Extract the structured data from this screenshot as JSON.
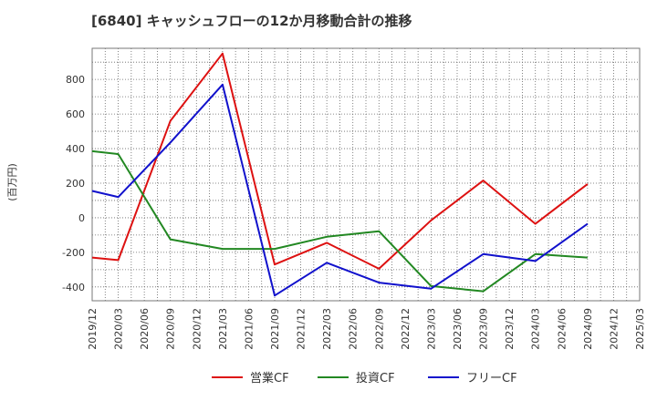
{
  "chart_data": {
    "type": "line",
    "title": "[6840]  キャッシュフローの12か月移動合計の推移",
    "ylabel": "(百万円)",
    "xlabel": "",
    "ylim": [
      -480,
      980
    ],
    "yticks": [
      -400,
      -200,
      0,
      200,
      400,
      600,
      800
    ],
    "grid": true,
    "legend_position": "bottom",
    "x_tick_labels": [
      "2019/12",
      "2020/03",
      "2020/06",
      "2020/09",
      "2020/12",
      "2021/03",
      "2021/06",
      "2021/09",
      "2021/12",
      "2022/03",
      "2022/06",
      "2022/09",
      "2022/12",
      "2023/03",
      "2023/06",
      "2023/09",
      "2023/12",
      "2024/03",
      "2024/06",
      "2024/09",
      "2024/12",
      "2025/03"
    ],
    "series": [
      {
        "name": "営業CF",
        "color": "#dd1111",
        "points": [
          {
            "x": "2019/12",
            "y": -230
          },
          {
            "x": "2020/03",
            "y": -245
          },
          {
            "x": "2020/09",
            "y": 560
          },
          {
            "x": "2021/03",
            "y": 950
          },
          {
            "x": "2021/09",
            "y": -270
          },
          {
            "x": "2022/03",
            "y": -145
          },
          {
            "x": "2022/09",
            "y": -295
          },
          {
            "x": "2023/03",
            "y": -15
          },
          {
            "x": "2023/09",
            "y": 215
          },
          {
            "x": "2024/03",
            "y": -35
          },
          {
            "x": "2024/09",
            "y": 195
          }
        ]
      },
      {
        "name": "投資CF",
        "color": "#228822",
        "points": [
          {
            "x": "2019/12",
            "y": 385
          },
          {
            "x": "2020/03",
            "y": 368
          },
          {
            "x": "2020/09",
            "y": -125
          },
          {
            "x": "2021/03",
            "y": -180
          },
          {
            "x": "2021/09",
            "y": -180
          },
          {
            "x": "2022/03",
            "y": -110
          },
          {
            "x": "2022/09",
            "y": -78
          },
          {
            "x": "2023/03",
            "y": -395
          },
          {
            "x": "2023/09",
            "y": -425
          },
          {
            "x": "2024/03",
            "y": -210
          },
          {
            "x": "2024/09",
            "y": -230
          }
        ]
      },
      {
        "name": "フリーCF",
        "color": "#1111cc",
        "points": [
          {
            "x": "2019/12",
            "y": 155
          },
          {
            "x": "2020/03",
            "y": 120
          },
          {
            "x": "2020/09",
            "y": 435
          },
          {
            "x": "2021/03",
            "y": 770
          },
          {
            "x": "2021/09",
            "y": -450
          },
          {
            "x": "2022/03",
            "y": -260
          },
          {
            "x": "2022/09",
            "y": -375
          },
          {
            "x": "2023/03",
            "y": -410
          },
          {
            "x": "2023/09",
            "y": -210
          },
          {
            "x": "2024/03",
            "y": -250
          },
          {
            "x": "2024/09",
            "y": -35
          }
        ]
      }
    ]
  }
}
